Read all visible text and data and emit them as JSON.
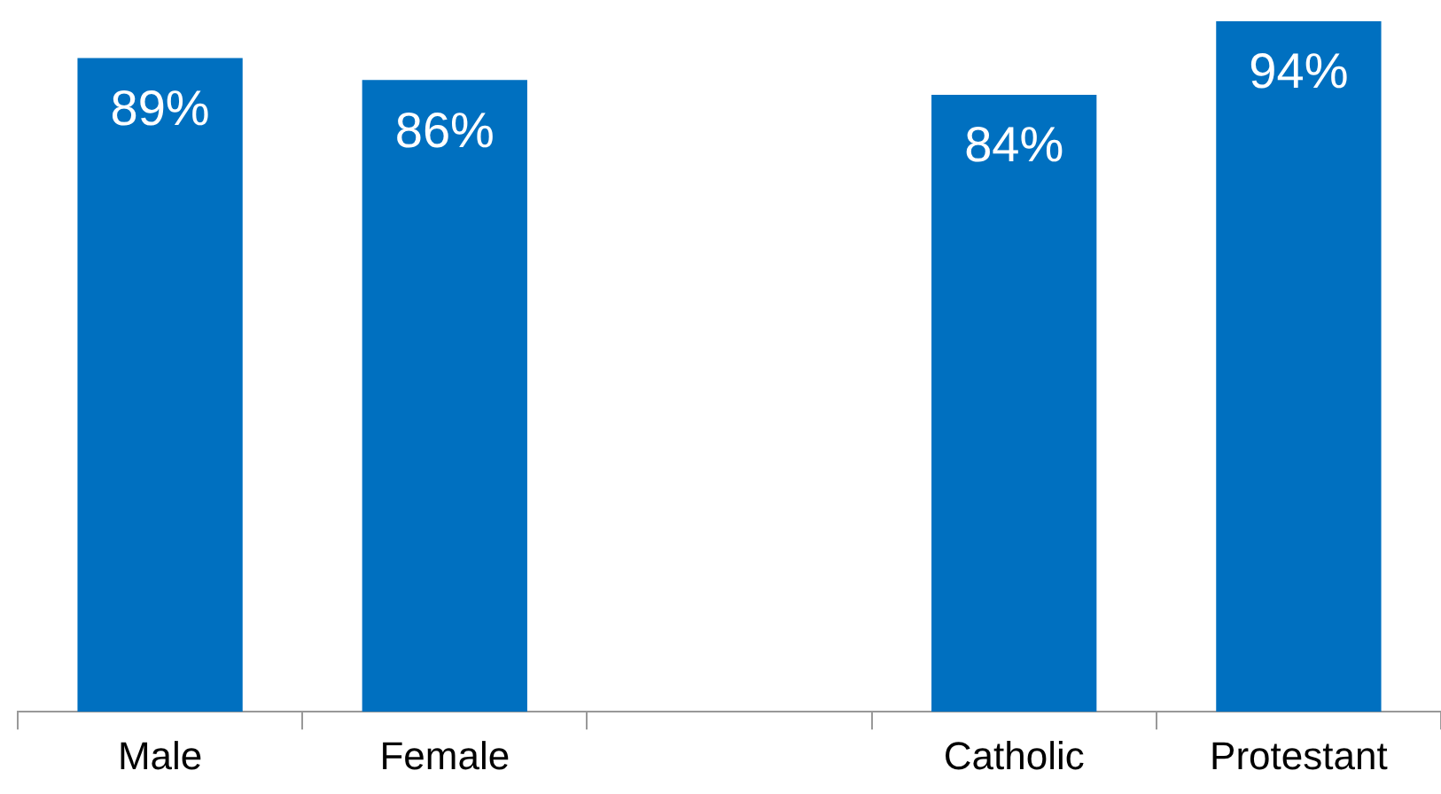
{
  "chart_data": {
    "type": "bar",
    "categories": [
      "Male",
      "Female",
      null,
      "Catholic",
      "Protestant"
    ],
    "values": [
      89,
      86,
      null,
      84,
      94
    ],
    "color": "#0070c0",
    "data_labels": true,
    "value_labels": [
      "89%",
      "86%",
      null,
      "84%",
      "94%"
    ],
    "grid": false,
    "legend": false,
    "tick_labels": "x"
  }
}
